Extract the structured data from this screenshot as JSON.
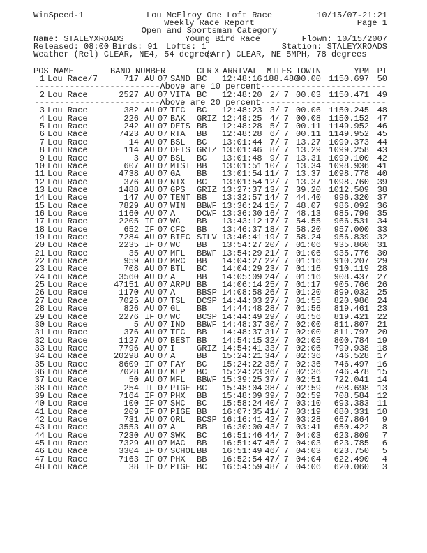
{
  "header": {
    "program": "WinSpeed-1",
    "title": "Lou McElroy One Loft Race",
    "datetime": "10/15/07-21:21",
    "subtitle": "Weekly Race Report",
    "page": "Page 1",
    "category": "Open and Sportsman Category",
    "name": "Name: STALEYXROADS",
    "race": "Young Bird Race",
    "flown": "Flown: 10/15/2007",
    "released": "Released: 08:00",
    "birds": "Birds: 91",
    "lofts": "Lofts: 1",
    "station": "Station: STALEYXROADS",
    "weather_rel": "Weather (Rel) CLEAR, NE4, 54 degrees",
    "weather_arr": "(Arr) CLEAR, NE 5MPH, 78 degrees"
  },
  "columns": {
    "pos": "POS",
    "name": "NAME",
    "band": "BAND NUMBER",
    "clr": "CLR",
    "x": "X",
    "arrival": "ARRIVAL",
    "miles": "MILES",
    "towin": "TOWIN",
    "ypm": "YPM",
    "pt": "PT"
  },
  "separators": [
    "Above are 10 percent",
    "Above are 20 percent"
  ],
  "first_row": {
    "pos": "1",
    "name": "Lou Race/7",
    "band": "717",
    "org": "AU",
    "year": "07",
    "code": "SAND",
    "clr": "BC",
    "arrival": "12:48:16",
    "miles": "188.480",
    "towin": "00.00",
    "ypm": "1150.697",
    "pt": "50"
  },
  "rows": [
    [
      "2",
      "Lou Race",
      "2527",
      "AU",
      "07",
      "VITA",
      "BC",
      "12:48:20",
      "2/",
      "7",
      "00.03",
      "1150.471",
      "49"
    ],
    [
      "3",
      "Lou Race",
      "382",
      "AU",
      "07",
      "TFC",
      "BC",
      "12:48:23",
      "3/",
      "7",
      "00.06",
      "1150.245",
      "48"
    ],
    [
      "4",
      "Lou Race",
      "226",
      "AU",
      "07",
      "BAK",
      "GRIZ",
      "12:48:25",
      "4/",
      "7",
      "00.08",
      "1150.152",
      "47"
    ],
    [
      "5",
      "Lou Race",
      "242",
      "AU",
      "07",
      "DEIS",
      "BB",
      "12:48:28",
      "5/",
      "7",
      "00.11",
      "1149.952",
      "46"
    ],
    [
      "6",
      "Lou Race",
      "7423",
      "AU",
      "07",
      "RTA",
      "BB",
      "12:48:28",
      "6/",
      "7",
      "00.11",
      "1149.952",
      "45"
    ],
    [
      "7",
      "Lou Race",
      "14",
      "AU",
      "07",
      "BSL",
      "BC",
      "13:01:44",
      "7/",
      "7",
      "13.27",
      "1099.373",
      "44"
    ],
    [
      "8",
      "Lou Race",
      "114",
      "AU",
      "07",
      "DEIS",
      "GRIZ",
      "13:01:46",
      "8/",
      "7",
      "13.29",
      "1099.258",
      "43"
    ],
    [
      "9",
      "Lou Race",
      "3",
      "AU",
      "07",
      "BSL",
      "BC",
      "13:01:48",
      "9/",
      "7",
      "13.31",
      "1099.100",
      "42"
    ],
    [
      "10",
      "Lou Race",
      "607",
      "AU",
      "07",
      "MIST",
      "BB",
      "13:01:51",
      "10/",
      "7",
      "13.34",
      "1098.936",
      "41"
    ],
    [
      "11",
      "Lou Race",
      "4738",
      "AU",
      "07",
      "GA",
      "BB",
      "13:01:54",
      "11/",
      "7",
      "13.37",
      "1098.778",
      "40"
    ],
    [
      "12",
      "Lou Race",
      "376",
      "AU",
      "07",
      "NIX",
      "BC",
      "13:01:54",
      "12/",
      "7",
      "13.37",
      "1098.760",
      "39"
    ],
    [
      "13",
      "Lou Race",
      "1488",
      "AU",
      "07",
      "GPS",
      "GRIZ",
      "13:27:37",
      "13/",
      "7",
      "39.20",
      "1012.509",
      "38"
    ],
    [
      "14",
      "Lou Race",
      "147",
      "AU",
      "07",
      "TENT",
      "BB",
      "13:32:57",
      "14/",
      "7",
      "44.40",
      "996.320",
      "37"
    ],
    [
      "15",
      "Lou Race",
      "7829",
      "AU",
      "07",
      "WIN",
      "BBWF",
      "13:36:24",
      "15/",
      "7",
      "48.07",
      "986.092",
      "36"
    ],
    [
      "16",
      "Lou Race",
      "1160",
      "AU",
      "07",
      "A",
      "DCWF",
      "13:36:30",
      "16/",
      "7",
      "48.13",
      "985.799",
      "35"
    ],
    [
      "17",
      "Lou Race",
      "2205",
      "IF",
      "07",
      "WC",
      "BB",
      "13:43:12",
      "17/",
      "7",
      "54.55",
      "966.531",
      "34"
    ],
    [
      "18",
      "Lou Race",
      "652",
      "IF",
      "07",
      "CFC",
      "BB",
      "13:46:37",
      "18/",
      "7",
      "58.20",
      "957.000",
      "33"
    ],
    [
      "19",
      "Lou Race",
      "7284",
      "AU",
      "07",
      "BIEC",
      "SILV",
      "13:46:41",
      "19/",
      "7",
      "58.24",
      "956.839",
      "32"
    ],
    [
      "20",
      "Lou Race",
      "2235",
      "IF",
      "07",
      "WC",
      "BB",
      "13:54:27",
      "20/",
      "7",
      "01:06",
      "935.860",
      "31"
    ],
    [
      "21",
      "Lou Race",
      "35",
      "AU",
      "07",
      "MFL",
      "BBWF",
      "13:54:29",
      "21/",
      "7",
      "01:06",
      "935.776",
      "30"
    ],
    [
      "22",
      "Lou Race",
      "959",
      "AU",
      "07",
      "MRC",
      "BB",
      "14:04:27",
      "22/",
      "7",
      "01:16",
      "910.207",
      "29"
    ],
    [
      "23",
      "Lou Race",
      "708",
      "AU",
      "07",
      "BTL",
      "BC",
      "14:04:29",
      "23/",
      "7",
      "01:16",
      "910.119",
      "28"
    ],
    [
      "24",
      "Lou Race",
      "3560",
      "AU",
      "07",
      "A",
      "BB",
      "14:05:09",
      "24/",
      "7",
      "01:16",
      "908.437",
      "27"
    ],
    [
      "25",
      "Lou Race",
      "47151",
      "AU",
      "07",
      "ARPU",
      "BB",
      "14:06:14",
      "25/",
      "7",
      "01:17",
      "905.766",
      "26"
    ],
    [
      "26",
      "Lou Race",
      "1170",
      "AU",
      "07",
      "A",
      "BBSP",
      "14:08:58",
      "26/",
      "7",
      "01:20",
      "899.032",
      "25"
    ],
    [
      "27",
      "Lou Race",
      "7025",
      "AU",
      "07",
      "TSL",
      "DCSP",
      "14:44:03",
      "27/",
      "7",
      "01:55",
      "820.986",
      "24"
    ],
    [
      "28",
      "Lou Race",
      "826",
      "AU",
      "07",
      "GL",
      "BB",
      "14:44:48",
      "28/",
      "7",
      "01:56",
      "819.461",
      "23"
    ],
    [
      "29",
      "Lou Race",
      "2276",
      "IF",
      "07",
      "WC",
      "BCSP",
      "14:44:49",
      "29/",
      "7",
      "01:56",
      "819.421",
      "22"
    ],
    [
      "30",
      "Lou Race",
      "5",
      "AU",
      "07",
      "IND",
      "BBWF",
      "14:48:37",
      "30/",
      "7",
      "02:00",
      "811.807",
      "21"
    ],
    [
      "31",
      "Lou Race",
      "376",
      "AU",
      "07",
      "TFC",
      "BB",
      "14:48:37",
      "31/",
      "7",
      "02:00",
      "811.797",
      "20"
    ],
    [
      "32",
      "Lou Race",
      "1127",
      "AU",
      "07",
      "BEST",
      "BB",
      "14:54:15",
      "32/",
      "7",
      "02:05",
      "800.784",
      "19"
    ],
    [
      "33",
      "Lou Race",
      "7796",
      "AU",
      "07",
      "I",
      "GRIZ",
      "14:54:41",
      "33/",
      "7",
      "02:06",
      "799.938",
      "18"
    ],
    [
      "34",
      "Lou Race",
      "20298",
      "AU",
      "07",
      "A",
      "BB",
      "15:24:21",
      "34/",
      "7",
      "02:36",
      "746.528",
      "17"
    ],
    [
      "35",
      "Lou Race",
      "8609",
      "IF",
      "07",
      "FAY",
      "BC",
      "15:24:22",
      "35/",
      "7",
      "02:36",
      "746.497",
      "16"
    ],
    [
      "36",
      "Lou Race",
      "7028",
      "AU",
      "07",
      "KLP",
      "BC",
      "15:24:23",
      "36/",
      "7",
      "02:36",
      "746.478",
      "15"
    ],
    [
      "37",
      "Lou Race",
      "50",
      "AU",
      "07",
      "MFL",
      "BBWF",
      "15:39:25",
      "37/",
      "7",
      "02:51",
      "722.041",
      "14"
    ],
    [
      "38",
      "Lou Race",
      "254",
      "IF",
      "07",
      "PIGE",
      "BC",
      "15:48:04",
      "38/",
      "7",
      "02:59",
      "708.698",
      "13"
    ],
    [
      "39",
      "Lou Race",
      "7164",
      "IF",
      "07",
      "PHX",
      "BB",
      "15:48:09",
      "39/",
      "7",
      "02:59",
      "708.584",
      "12"
    ],
    [
      "40",
      "Lou Race",
      "100",
      "IF",
      "07",
      "SHC",
      "BC",
      "15:58:24",
      "40/",
      "7",
      "03:10",
      "693.383",
      "11"
    ],
    [
      "41",
      "Lou Race",
      "209",
      "IF",
      "07",
      "PIGE",
      "BB",
      "16:07:35",
      "41/",
      "7",
      "03:19",
      "680.331",
      "10"
    ],
    [
      "42",
      "Lou Race",
      "731",
      "AU",
      "07",
      "ORL",
      "BCSP",
      "16:16:41",
      "42/",
      "7",
      "03:28",
      "667.864",
      "9"
    ],
    [
      "43",
      "Lou Race",
      "3553",
      "AU",
      "07",
      "A",
      "BB",
      "16:30:00",
      "43/",
      "7",
      "03:41",
      "650.422",
      "8"
    ],
    [
      "44",
      "Lou Race",
      "7230",
      "AU",
      "07",
      "SWK",
      "BC",
      "16:51:46",
      "44/",
      "7",
      "04:03",
      "623.809",
      "7"
    ],
    [
      "45",
      "Lou Race",
      "7329",
      "AU",
      "07",
      "MAC",
      "BB",
      "16:51:47",
      "45/",
      "7",
      "04:03",
      "623.785",
      "6"
    ],
    [
      "46",
      "Lou Race",
      "3304",
      "IF",
      "07",
      "SCHOL",
      "BB",
      "16:51:49",
      "46/",
      "7",
      "04:03",
      "623.750",
      "5"
    ],
    [
      "47",
      "Lou Race",
      "7163",
      "IF",
      "07",
      "PHX",
      "BB",
      "16:52:54",
      "47/",
      "7",
      "04:04",
      "622.490",
      "4"
    ],
    [
      "48",
      "Lou Race",
      "38",
      "IF",
      "07",
      "PIGE",
      "BC",
      "16:54:59",
      "48/",
      "7",
      "04:06",
      "620.060",
      "3"
    ]
  ]
}
